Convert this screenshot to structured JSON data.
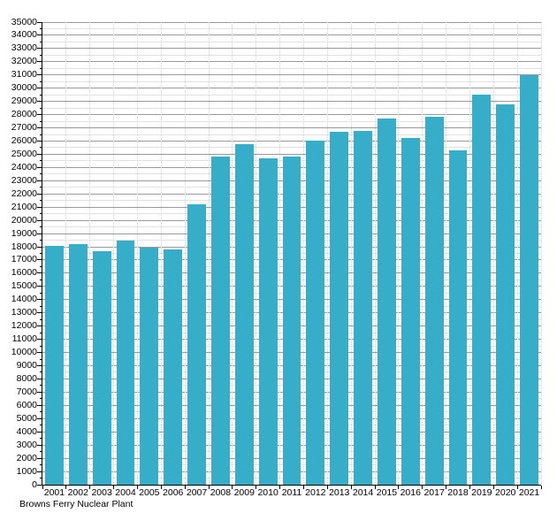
{
  "chart_data": {
    "type": "bar",
    "title": "",
    "caption": "Browns Ferry Nuclear Plant",
    "xlabel": "",
    "ylabel": "",
    "categories": [
      "2001",
      "2002",
      "2003",
      "2004",
      "2005",
      "2006",
      "2007",
      "2008",
      "2009",
      "2010",
      "2011",
      "2012",
      "2013",
      "2014",
      "2015",
      "2016",
      "2017",
      "2018",
      "2019",
      "2020",
      "2021"
    ],
    "values": [
      18100,
      18200,
      17700,
      18500,
      17950,
      17800,
      21200,
      24800,
      25750,
      24700,
      24850,
      26050,
      26700,
      26750,
      27700,
      26200,
      27850,
      25300,
      29500,
      28800,
      31000
    ],
    "ylim": [
      0,
      35000
    ],
    "y_tick_step": 1000,
    "y_minor_step": 500,
    "y_tick_labels": [
      "0",
      "1000",
      "2000",
      "3000",
      "4000",
      "5000",
      "6000",
      "7000",
      "8000",
      "9000",
      "10000",
      "11000",
      "12000",
      "13000",
      "14000",
      "15000",
      "16000",
      "17000",
      "18000",
      "19000",
      "20000",
      "21000",
      "22000",
      "23000",
      "24000",
      "25000",
      "26000",
      "27000",
      "28000",
      "29000",
      "30000",
      "31000",
      "32000",
      "33000",
      "34000",
      "35000"
    ],
    "grid": true,
    "legend_position": "none",
    "bar_color": "#36AEC9",
    "major_grid_color": "#9a9a9a",
    "minor_grid_color": "#e2e2e2",
    "vertical_grid_color": "#d4d4d4",
    "axis_color": "#000000",
    "text_color": "#000000"
  }
}
